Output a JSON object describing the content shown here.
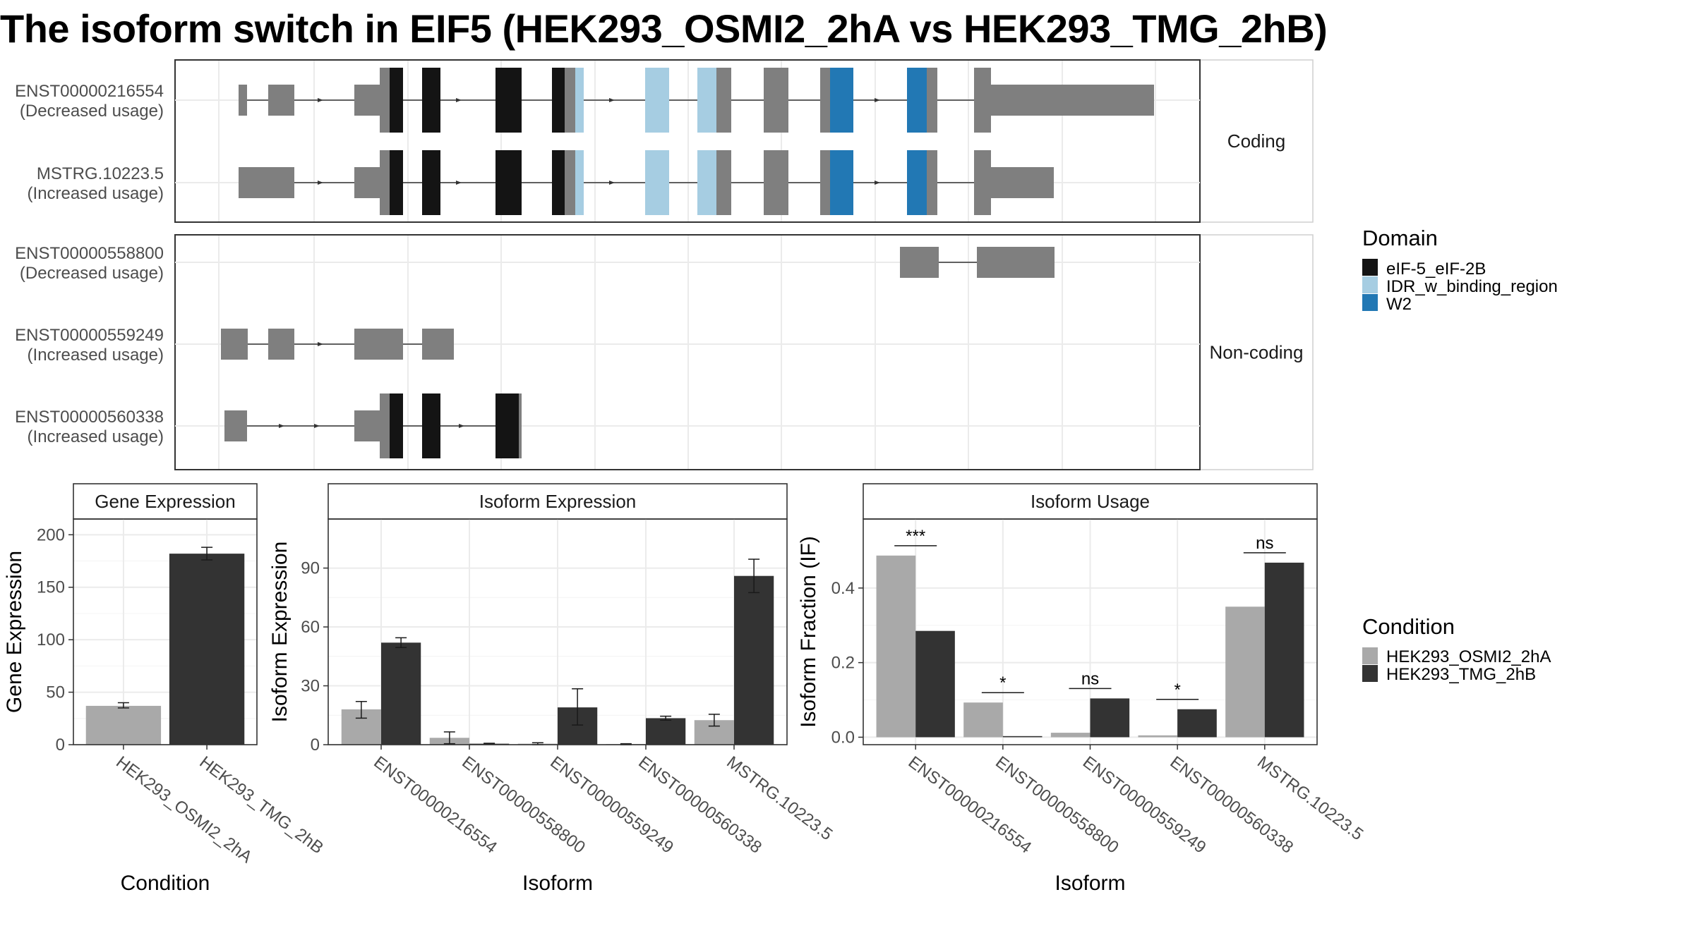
{
  "title": "The isoform switch in EIF5 (HEK293_OSMI2_2hA vs HEK293_TMG_2hB)",
  "colors": {
    "eIF5": "#141414",
    "IDR": "#a6cde2",
    "W2": "#2278b4",
    "exon": "#7f7f7f",
    "condA": "#a9a9a9",
    "condB": "#333333"
  },
  "structure": {
    "coding_strip": "Coding",
    "noncoding_strip": "Non-coding",
    "transcripts": [
      {
        "id": "ENST00000216554",
        "note": "(Decreased usage)",
        "group": "coding"
      },
      {
        "id": "MSTRG.10223.5",
        "note": "(Increased usage)",
        "group": "coding"
      },
      {
        "id": "ENST00000558800",
        "note": "(Decreased usage)",
        "group": "noncoding"
      },
      {
        "id": "ENST00000559249",
        "note": "(Increased usage)",
        "group": "noncoding"
      },
      {
        "id": "ENST00000560338",
        "note": "(Increased usage)",
        "group": "noncoding"
      }
    ]
  },
  "legends": {
    "domain_title": "Domain",
    "domain_items": [
      {
        "label": "eIF-5_eIF-2B",
        "color": "#141414"
      },
      {
        "label": "IDR_w_binding_region",
        "color": "#a6cde2"
      },
      {
        "label": "W2",
        "color": "#2278b4"
      }
    ],
    "condition_title": "Condition",
    "condition_items": [
      {
        "label": "HEK293_OSMI2_2hA",
        "color": "#a9a9a9"
      },
      {
        "label": "HEK293_TMG_2hB",
        "color": "#333333"
      }
    ]
  },
  "chart_data": [
    {
      "type": "bar",
      "title": "Gene Expression",
      "xlabel": "Condition",
      "ylabel": "Gene Expression",
      "ylim": [
        0,
        215
      ],
      "yticks": [
        0,
        50,
        100,
        150,
        200
      ],
      "categories": [
        "HEK293_OSMI2_2hA",
        "HEK293_TMG_2hB"
      ],
      "values": [
        37,
        182
      ],
      "errors": [
        [
          35,
          40
        ],
        [
          176,
          188
        ]
      ]
    },
    {
      "type": "bar",
      "title": "Isoform Expression",
      "xlabel": "Isoform",
      "ylabel": "Isoform Expression",
      "ylim": [
        0,
        115
      ],
      "yticks": [
        0,
        30,
        60,
        90
      ],
      "categories": [
        "ENST00000216554",
        "ENST00000558800",
        "ENST00000559249",
        "ENST00000560338",
        "MSTRG.10223.5"
      ],
      "series": [
        {
          "name": "HEK293_OSMI2_2hA",
          "values": [
            18,
            3.5,
            0.5,
            0.3,
            12.5
          ],
          "errors": [
            [
              13.5,
              22
            ],
            [
              0.5,
              6.5
            ],
            [
              0,
              1
            ],
            [
              0,
              0.5
            ],
            [
              9.5,
              15.5
            ]
          ]
        },
        {
          "name": "HEK293_TMG_2hB",
          "values": [
            52,
            0.5,
            19,
            13.5,
            86
          ],
          "errors": [
            [
              49.5,
              54.5
            ],
            [
              0.3,
              0.7
            ],
            [
              10,
              28.5
            ],
            [
              12.5,
              14.5
            ],
            [
              77.5,
              94.5
            ]
          ]
        }
      ]
    },
    {
      "type": "bar",
      "title": "Isoform Usage",
      "xlabel": "Isoform",
      "ylabel": "Isoform Fraction (IF)",
      "ylim": [
        -0.02,
        0.585
      ],
      "yticks": [
        0.0,
        0.2,
        0.4
      ],
      "ytick_labels": [
        "0.0",
        "0.2",
        "0.4"
      ],
      "categories": [
        "ENST00000216554",
        "ENST00000558800",
        "ENST00000559249",
        "ENST00000560338",
        "MSTRG.10223.5"
      ],
      "series": [
        {
          "name": "HEK293_OSMI2_2hA",
          "values": [
            0.487,
            0.093,
            0.012,
            0.005,
            0.35
          ]
        },
        {
          "name": "HEK293_TMG_2hB",
          "values": [
            0.285,
            0.003,
            0.104,
            0.075,
            0.468
          ]
        }
      ],
      "significance": [
        "***",
        "*",
        "ns",
        "*",
        "ns"
      ]
    }
  ]
}
